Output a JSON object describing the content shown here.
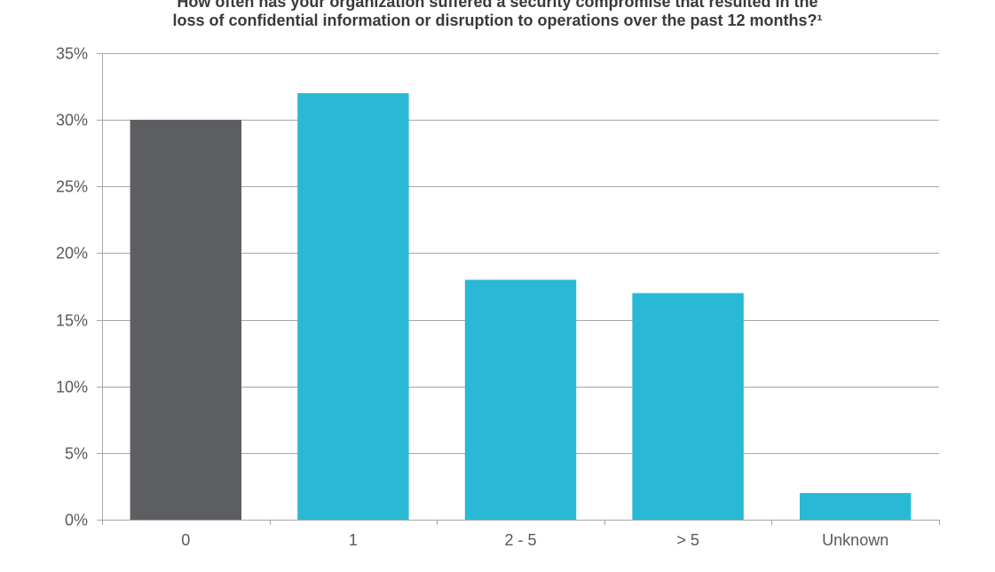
{
  "chart_data": {
    "type": "bar",
    "title": {
      "line1": "How often has your organization suffered a security compromise that resulted in the",
      "line2": "loss of confidential information or disruption to operations over the past 12 months?¹"
    },
    "categories": [
      "0",
      "1",
      "2 - 5",
      "> 5",
      "Unknown"
    ],
    "values": [
      30,
      32,
      18,
      17,
      2
    ],
    "bar_colors": [
      "#5d5e61",
      "#29b9d7",
      "#29b9d7",
      "#29b9d7",
      "#29b9d7"
    ],
    "ylim": [
      0,
      35
    ],
    "yticks": [
      0,
      5,
      10,
      15,
      20,
      25,
      30,
      35
    ],
    "ytick_labels": [
      "0%",
      "5%",
      "10%",
      "15%",
      "20%",
      "25%",
      "30%",
      "35%"
    ],
    "xlabel": "",
    "ylabel": "",
    "grid": true,
    "legend": "none"
  },
  "colors": {
    "gridline": "#a6a6a6",
    "axis": "#a6a6a6",
    "text": "#595959"
  }
}
